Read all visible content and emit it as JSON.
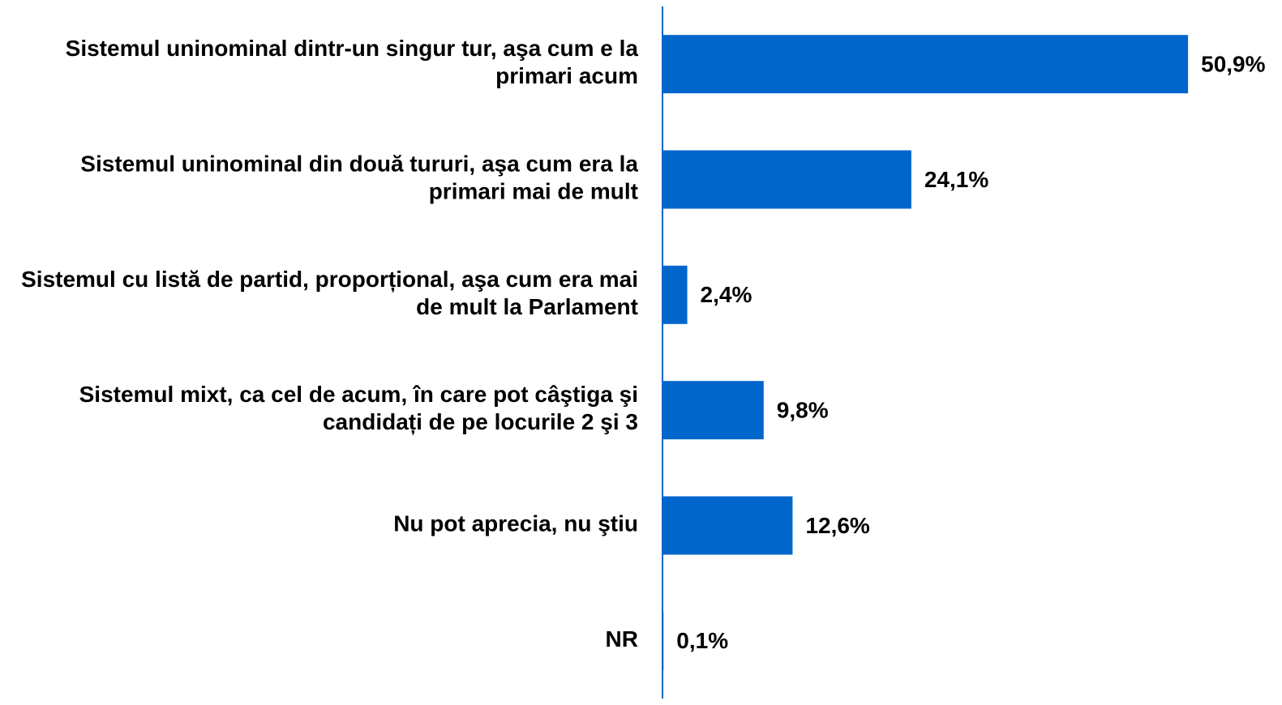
{
  "chart_data": {
    "type": "bar",
    "orientation": "horizontal",
    "categories": [
      "Sistemul uninominal dintr-un singur tur, aşa cum e la primari acum",
      "Sistemul uninominal din două tururi, aşa cum era la primari mai de mult",
      "Sistemul cu listă de partid, proporțional, aşa cum era mai de mult la Parlament",
      "Sistemul mixt, ca cel de acum, în care pot câştiga şi candidați de pe locurile 2 şi 3",
      "Nu pot aprecia, nu ştiu",
      "NR"
    ],
    "values": [
      50.9,
      24.1,
      2.4,
      9.8,
      12.6,
      0.1
    ],
    "value_labels": [
      "50,9%",
      "24,1%",
      "2,4%",
      "9,8%",
      "12,6%",
      "0,1%"
    ],
    "color": "#0066cc",
    "xlim": [
      0,
      60
    ]
  }
}
